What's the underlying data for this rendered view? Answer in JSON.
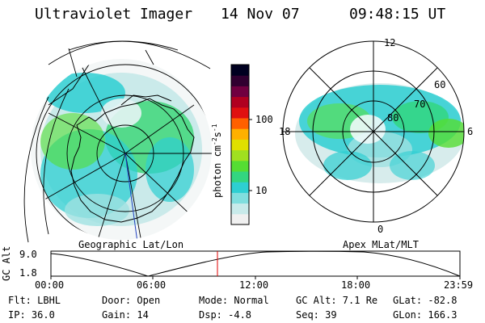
{
  "header": {
    "instrument": "Ultraviolet Imager",
    "date": "14 Nov 07",
    "time": "09:48:15 UT"
  },
  "colorbar": {
    "unit": "photon cm",
    "unit_exp": "-2",
    "unit_s": "s",
    "unit_s_exp": "-1",
    "ticks": [
      "100",
      "10"
    ],
    "scale": "log",
    "colors": [
      "#f0f0f0",
      "#c8eaea",
      "#80dede",
      "#2ecfd2",
      "#33d680",
      "#55dd33",
      "#a0e020",
      "#e0e000",
      "#ffb000",
      "#ff6000",
      "#e01010",
      "#b00020",
      "#700040",
      "#300030",
      "#000020"
    ]
  },
  "left_panel": {
    "caption": "Geographic Lat/Lon"
  },
  "right_panel": {
    "caption": "Apex MLat/MLT",
    "mlt_labels": {
      "top": "12",
      "left": "18",
      "right": "6",
      "bottom": "0"
    },
    "lat_labels": [
      "60",
      "70",
      "80"
    ]
  },
  "altitude_plot": {
    "ylabel": "GC Alt",
    "yticks": [
      "9.0",
      "1.8"
    ],
    "xticks": [
      "00:00",
      "06:00",
      "12:00",
      "18:00",
      "23:59"
    ],
    "marker_time": "09:48",
    "marker_color": "#e00000"
  },
  "info": {
    "filter": "Flt: LBHL",
    "ip": "IP: 36.0",
    "door": "Door: Open",
    "gain": "Gain: 14",
    "mode": "Mode: Normal",
    "dsp": "Dsp:   -4.8",
    "gc_alt": "GC Alt: 7.1 Re",
    "seq": "Seq: 39",
    "glat": "GLat: -82.8",
    "glon": "GLon: 166.3"
  }
}
